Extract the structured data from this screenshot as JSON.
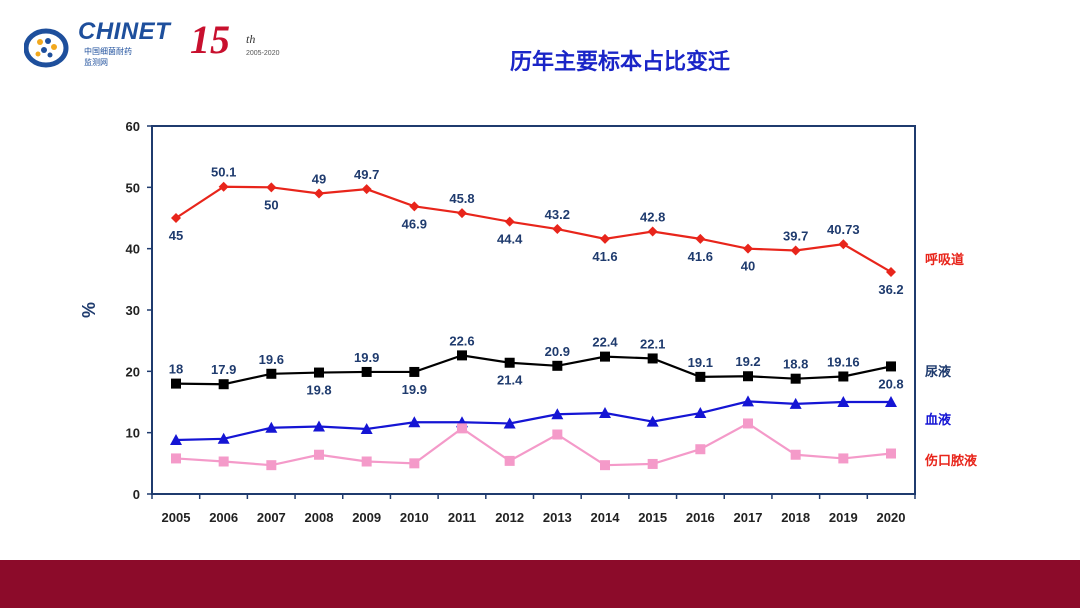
{
  "header": {
    "logo_text": "CHINET",
    "logo_sub1": "中国细菌耐药",
    "logo_sub2": "监测网",
    "anniversary_number": "15",
    "anniversary_suffix": "th",
    "anniversary_years": "2005-2020",
    "title": "历年主要标本占比变迁"
  },
  "colors": {
    "title": "#1a25c7",
    "axis": "#1f3b6e",
    "footer": "#8c0b2a"
  },
  "chart_data": {
    "type": "line",
    "title": "历年主要标本占比变迁",
    "xlabel": "",
    "ylabel": "%",
    "ylim": [
      0,
      60
    ],
    "yticks": [
      "0",
      "10",
      "20",
      "30",
      "40",
      "50",
      "60"
    ],
    "grid": false,
    "legend": "right",
    "categories": [
      "2005",
      "2006",
      "2007",
      "2008",
      "2009",
      "2010",
      "2011",
      "2012",
      "2013",
      "2014",
      "2015",
      "2016",
      "2017",
      "2018",
      "2019",
      "2020"
    ],
    "series": [
      {
        "name": "呼吸道",
        "color": "#e8251b",
        "marker": "diamond",
        "values": [
          45,
          50.1,
          50,
          49,
          49.7,
          46.9,
          45.8,
          44.4,
          43.2,
          41.6,
          42.8,
          41.6,
          40,
          39.7,
          40.73,
          36.2
        ],
        "data_labels": [
          "45",
          "50.1",
          "50",
          "49",
          "49.7",
          "46.9",
          "45.8",
          "44.4",
          "43.2",
          "41.6",
          "42.8",
          "41.6",
          "40",
          "39.7",
          "40.73",
          "36.2"
        ],
        "label_position": [
          "below",
          "above",
          "below",
          "above",
          "above",
          "below",
          "above",
          "below",
          "above",
          "below",
          "above",
          "below",
          "below",
          "above",
          "above",
          "below"
        ]
      },
      {
        "name": "尿液",
        "color": "#000000",
        "marker": "square",
        "values": [
          18,
          17.9,
          19.6,
          19.8,
          19.9,
          19.9,
          22.6,
          21.4,
          20.9,
          22.4,
          22.1,
          19.1,
          19.2,
          18.8,
          19.16,
          20.8
        ],
        "data_labels": [
          "18",
          "17.9",
          "19.6",
          "19.8",
          "19.9",
          "19.9",
          "22.6",
          "21.4",
          "20.9",
          "22.4",
          "22.1",
          "19.1",
          "19.2",
          "18.8",
          "19.16",
          "20.8"
        ],
        "label_position": [
          "above",
          "above",
          "above",
          "below",
          "above",
          "below",
          "above",
          "below",
          "above",
          "above",
          "above",
          "above",
          "above",
          "above",
          "above",
          "below"
        ]
      },
      {
        "name": "血液",
        "color": "#1515d4",
        "marker": "triangle",
        "values": [
          8.8,
          9.0,
          10.8,
          11.0,
          10.6,
          11.7,
          11.7,
          11.5,
          13.0,
          13.2,
          11.8,
          13.2,
          15.1,
          14.7,
          15.0,
          15.0
        ]
      },
      {
        "name": "伤口脓液",
        "color": "#f49ac9",
        "marker": "square",
        "values": [
          5.8,
          5.3,
          4.7,
          6.4,
          5.3,
          5.0,
          10.7,
          5.4,
          9.7,
          4.7,
          4.9,
          7.3,
          11.5,
          6.4,
          5.8,
          6.6
        ]
      }
    ]
  }
}
